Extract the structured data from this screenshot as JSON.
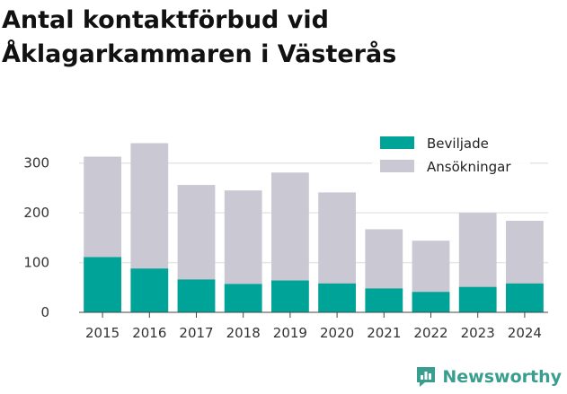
{
  "title": "Antal kontaktförbud vid Åklagarkammaren i Västerås",
  "brand": "Newsworthy",
  "colors": {
    "beviljade": "#00a398",
    "ansokningar": "#c9c8d3",
    "grid": "#e6e6e6",
    "brand": "#3a9e8f"
  },
  "chart_data": {
    "type": "bar",
    "stacking": "overlay",
    "title": "Antal kontaktförbud vid Åklagarkammaren i Västerås",
    "xlabel": "",
    "ylabel": "",
    "categories": [
      "2015",
      "2016",
      "2017",
      "2018",
      "2019",
      "2020",
      "2021",
      "2022",
      "2023",
      "2024"
    ],
    "ylim": [
      0,
      350
    ],
    "yticks": [
      0,
      100,
      200,
      300
    ],
    "grid": true,
    "legend_position": "top-right",
    "series": [
      {
        "name": "Ansökningar",
        "color": "#c9c8d3",
        "values": [
          313,
          340,
          256,
          245,
          281,
          241,
          167,
          144,
          200,
          184
        ]
      },
      {
        "name": "Beviljade",
        "color": "#00a398",
        "values": [
          111,
          88,
          66,
          57,
          64,
          58,
          48,
          41,
          51,
          58
        ]
      }
    ],
    "legend": [
      "Beviljade",
      "Ansökningar"
    ]
  }
}
